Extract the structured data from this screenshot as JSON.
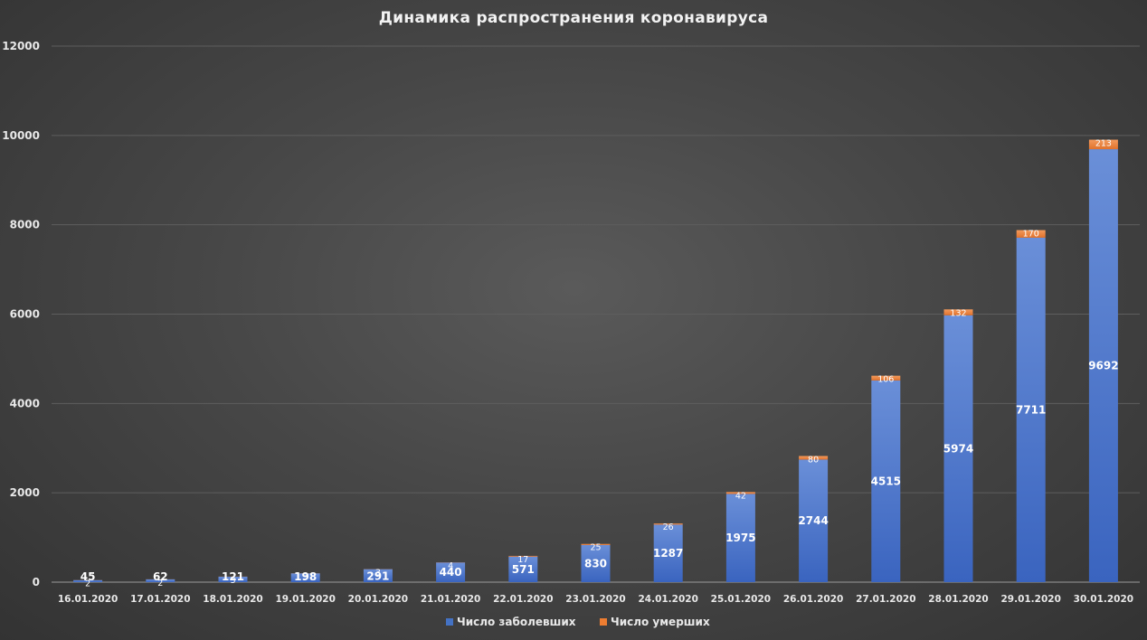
{
  "chart_data": {
    "type": "bar",
    "stacked": true,
    "title": "Динамика распространения коронавируса",
    "categories": [
      "16.01.2020",
      "17.01.2020",
      "18.01.2020",
      "19.01.2020",
      "20.01.2020",
      "21.01.2020",
      "22.01.2020",
      "23.01.2020",
      "24.01.2020",
      "25.01.2020",
      "26.01.2020",
      "27.01.2020",
      "28.01.2020",
      "29.01.2020",
      "30.01.2020"
    ],
    "series": [
      {
        "name": "Число заболевших",
        "color": "#4472c4",
        "values": [
          45,
          62,
          121,
          198,
          291,
          440,
          571,
          830,
          1287,
          1975,
          2744,
          4515,
          5974,
          7711,
          9692
        ]
      },
      {
        "name": "Число умерших",
        "color": "#ed7d31",
        "values": [
          2,
          2,
          3,
          3,
          3,
          4,
          17,
          25,
          26,
          42,
          80,
          106,
          132,
          170,
          213
        ]
      }
    ],
    "ylim": [
      0,
      12000
    ],
    "yticks": [
      0,
      2000,
      4000,
      6000,
      8000,
      10000,
      12000
    ],
    "grid": true,
    "legend": "bottom"
  }
}
